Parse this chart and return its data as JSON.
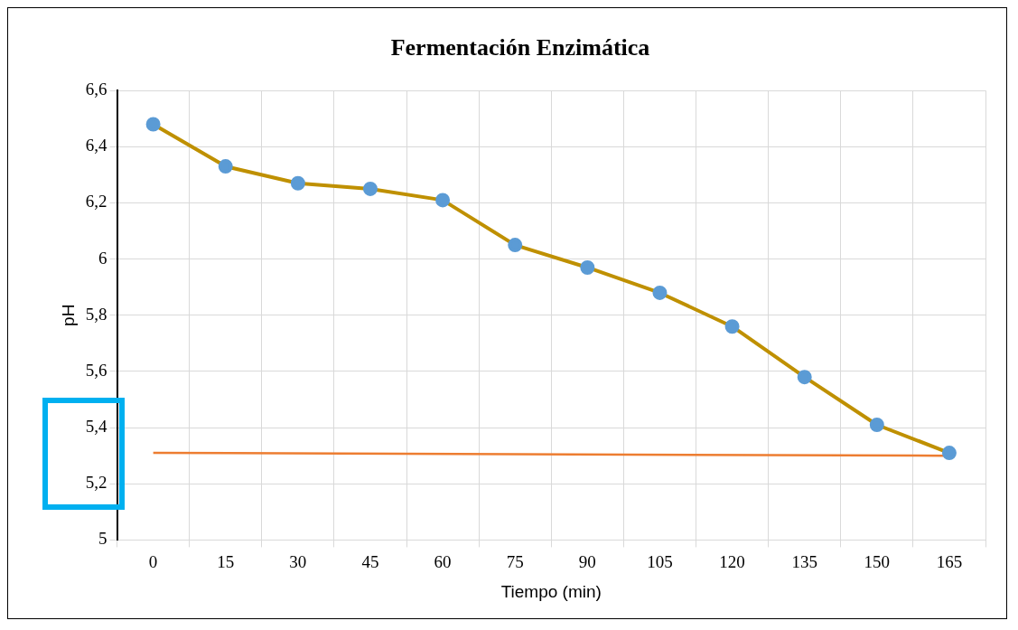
{
  "chart_data": {
    "type": "line",
    "title": "Fermentación Enzimática",
    "xlabel": "Tiempo (min)",
    "ylabel": "pH",
    "categories": [
      "0",
      "15",
      "30",
      "45",
      "60",
      "75",
      "90",
      "105",
      "120",
      "135",
      "150",
      "165"
    ],
    "series": [
      {
        "color": "#bf9000",
        "colors": [
          "#5b9bd5",
          "#5b9bd5",
          "#5b9bd5",
          "#5b9bd5",
          "#5b9bd5",
          "#5b9bd5",
          "#5b9bd5",
          "#5b9bd5",
          "#5b9bd5",
          "#5b9bd5",
          "#5b9bd5",
          "#5b9bd5"
        ],
        "marker": "circle",
        "values": [
          6.48,
          6.33,
          6.27,
          6.25,
          6.21,
          6.05,
          5.97,
          5.88,
          5.76,
          5.58,
          5.41,
          5.31
        ]
      },
      {
        "color": "#ed7d31",
        "marker": "none",
        "values": [
          5.31,
          null,
          null,
          null,
          null,
          null,
          null,
          null,
          null,
          null,
          null,
          5.3
        ]
      }
    ],
    "ylim": [
      5,
      6.6
    ],
    "yticks": [
      {
        "value": 5,
        "label": "5"
      },
      {
        "value": 5.2,
        "label": "5,2"
      },
      {
        "value": 5.4,
        "label": "5,4"
      },
      {
        "value": 5.6,
        "label": "5,6"
      },
      {
        "value": 5.8,
        "label": "5,8"
      },
      {
        "value": 6,
        "label": "6"
      },
      {
        "value": 6.2,
        "label": "6,2"
      },
      {
        "value": 6.4,
        "label": "6,4"
      },
      {
        "value": 6.6,
        "label": "6,6"
      }
    ],
    "grid": true,
    "legend": false
  }
}
